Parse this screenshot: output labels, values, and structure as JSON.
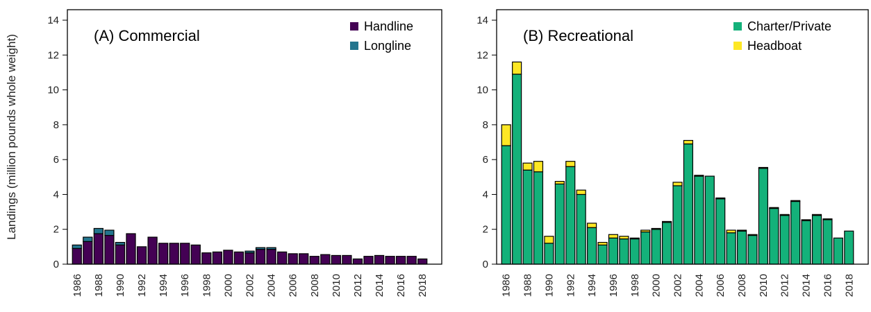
{
  "chart_data": [
    {
      "type": "bar",
      "stacked": true,
      "title": "(A) Commercial",
      "ylabel": "Landings (million pounds whole weight)",
      "categories": [
        "1986",
        null,
        "1988",
        null,
        "1990",
        null,
        "1992",
        null,
        "1994",
        null,
        "1996",
        null,
        "1998",
        null,
        "2000",
        null,
        "2002",
        null,
        "2004",
        null,
        "2006",
        null,
        "2008",
        null,
        "2010",
        null,
        "2012",
        null,
        "2014",
        null,
        "2016",
        null,
        "2018"
      ],
      "series": [
        {
          "name": "Handline",
          "color": "#440154",
          "values": [
            0.9,
            1.3,
            1.75,
            1.65,
            1.1,
            1.75,
            1.0,
            1.55,
            1.2,
            1.2,
            1.2,
            1.1,
            0.65,
            0.7,
            0.8,
            0.7,
            0.65,
            0.85,
            0.85,
            0.7,
            0.6,
            0.6,
            0.45,
            0.55,
            0.5,
            0.5,
            0.3,
            0.45,
            0.5,
            0.45,
            0.45,
            0.45,
            0.3
          ]
        },
        {
          "name": "Longline",
          "color": "#23758e",
          "values": [
            0.2,
            0.25,
            0.3,
            0.3,
            0.15,
            0,
            0,
            0,
            0,
            0,
            0,
            0,
            0,
            0,
            0,
            0,
            0.1,
            0.1,
            0.1,
            0,
            0,
            0,
            0,
            0,
            0,
            0,
            0,
            0,
            0,
            0,
            0,
            0,
            0
          ]
        }
      ],
      "ylim": [
        0,
        14.6
      ],
      "yticks": [
        0,
        2,
        4,
        6,
        8,
        10,
        12,
        14
      ],
      "grid": false,
      "legend": "topright"
    },
    {
      "type": "bar",
      "stacked": true,
      "title": "(B) Recreational",
      "categories": [
        "1986",
        null,
        "1988",
        null,
        "1990",
        null,
        "1992",
        null,
        "1994",
        null,
        "1996",
        null,
        "1998",
        null,
        "2000",
        null,
        "2002",
        null,
        "2004",
        null,
        "2006",
        null,
        "2008",
        null,
        "2010",
        null,
        "2012",
        null,
        "2014",
        null,
        "2016",
        null,
        "2018"
      ],
      "series": [
        {
          "name": "Charter/Private",
          "color": "#14b17a",
          "values": [
            6.8,
            10.9,
            5.4,
            5.3,
            1.2,
            4.6,
            5.6,
            4.0,
            2.1,
            1.1,
            1.5,
            1.45,
            1.45,
            1.85,
            2.0,
            2.4,
            4.5,
            6.9,
            5.05,
            5.05,
            3.75,
            1.8,
            1.9,
            1.65,
            5.5,
            3.2,
            2.8,
            3.6,
            2.5,
            2.8,
            2.55,
            1.5,
            1.9
          ]
        },
        {
          "name": "Headboat",
          "color": "#fde725",
          "values": [
            1.2,
            0.7,
            0.4,
            0.6,
            0.4,
            0.15,
            0.3,
            0.25,
            0.25,
            0.15,
            0.2,
            0.15,
            0.05,
            0.1,
            0.05,
            0.05,
            0.2,
            0.2,
            0.05,
            0,
            0.05,
            0.15,
            0.05,
            0.05,
            0.05,
            0.05,
            0.05,
            0.05,
            0.05,
            0.05,
            0.05,
            0,
            0
          ]
        }
      ],
      "ylim": [
        0,
        14.6
      ],
      "yticks": [
        0,
        2,
        4,
        6,
        8,
        10,
        12,
        14
      ],
      "grid": false,
      "legend": "topright"
    }
  ]
}
